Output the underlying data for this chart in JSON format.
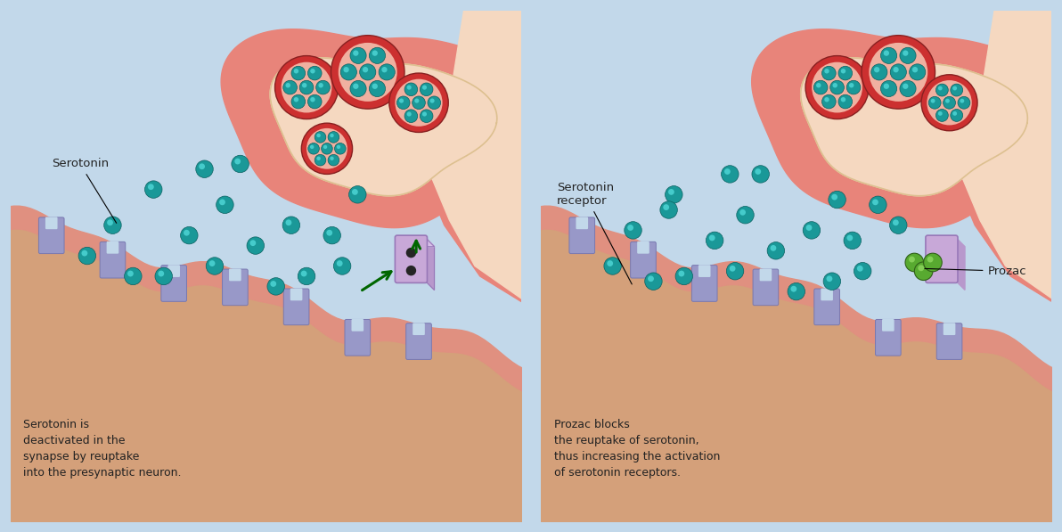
{
  "bg_color": "#c2d8ea",
  "neuron_body_color": "#e8847a",
  "neuron_inner_color": "#f5d8c0",
  "neuron_inner_edge": "#ddc090",
  "post_surface_color": "#e09080",
  "post_body_color": "#dba888",
  "post_sandy": "#d4a07a",
  "receptor_top": "#9898c8",
  "receptor_bot": "#7878b0",
  "receptor_mid": "#b0a8d8",
  "reuptake_color": "#c8a8d8",
  "reuptake_edge": "#9878b8",
  "reuptake_face": "#b898cc",
  "vesicle_ring": "#cc3030",
  "vesicle_fill": "#f0b0a0",
  "serotonin_main": "#1a9898",
  "serotonin_light": "#50d8d8",
  "serotonin_dark": "#0a6060",
  "prozac_main": "#58aa30",
  "prozac_light": "#90d860",
  "prozac_dark": "#306018",
  "arrow_color": "#006600",
  "text_color": "#222222",
  "left_caption": "Serotonin is\ndeactivated in the\nsynapse by reuptake\ninto the presynaptic neuron.",
  "right_caption": "Prozac blocks\nthe reuptake of serotonin,\nthus increasing the activation\nof serotonin receptors.",
  "left_label": "Serotonin",
  "right_label1": "Serotonin\nreceptor",
  "right_label2": "Prozac"
}
